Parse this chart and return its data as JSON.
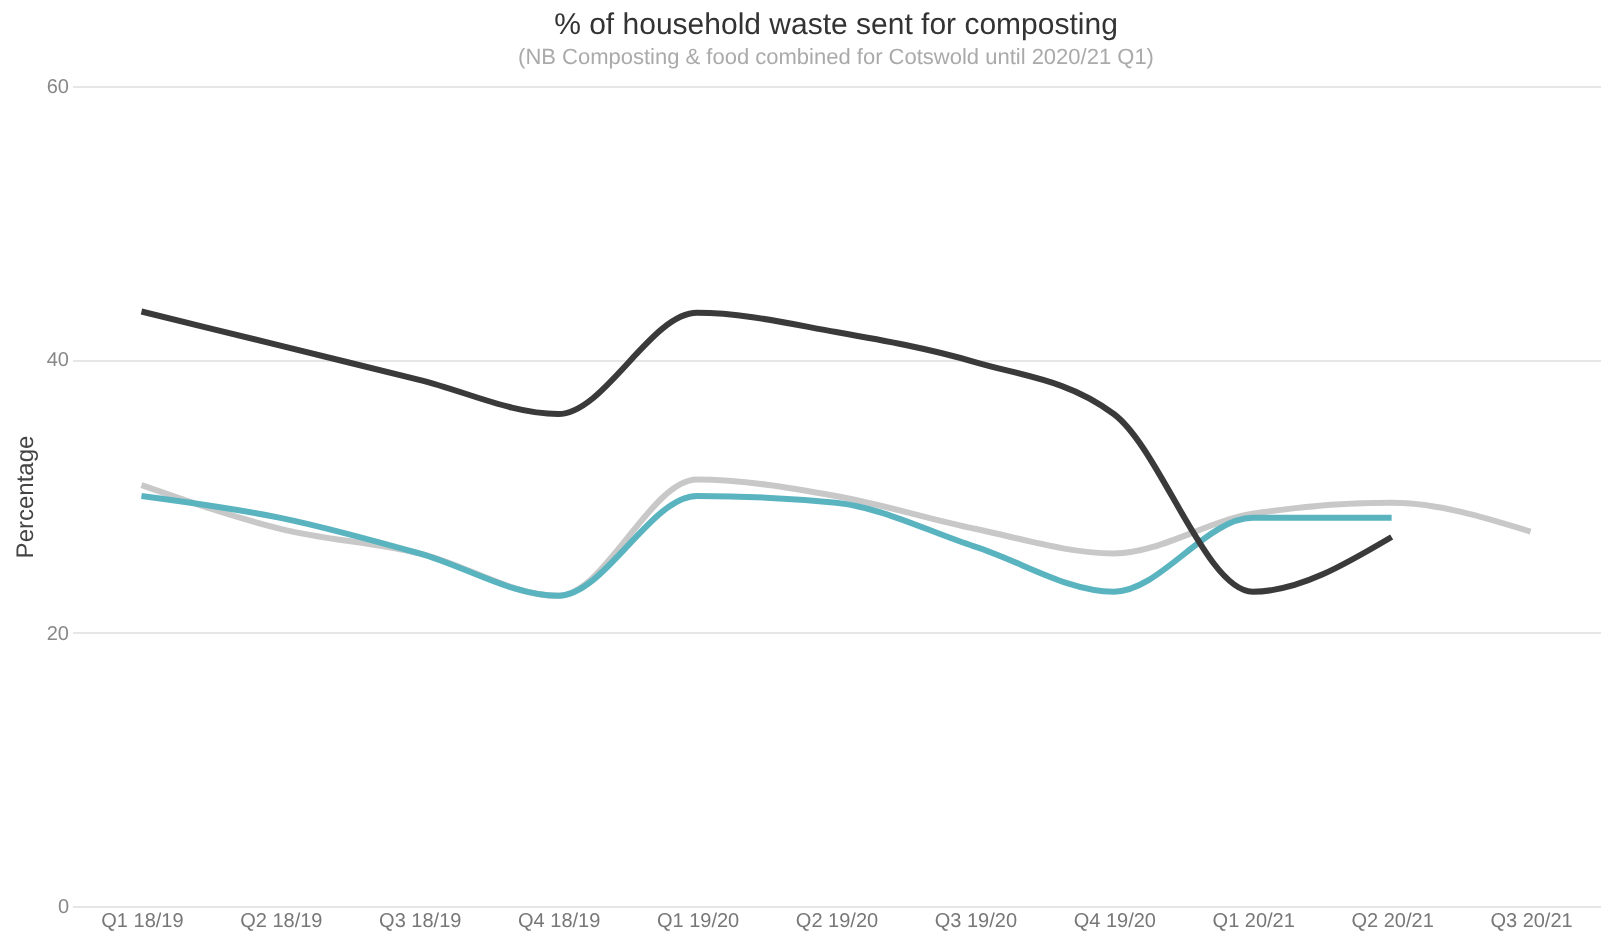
{
  "chart_data": {
    "type": "line",
    "title": "% of household waste sent for composting",
    "subtitle": "(NB Composting & food combined for Cotswold until 2020/21 Q1)",
    "ylabel": "Percentage",
    "categories": [
      "Q1 18/19",
      "Q2 18/19",
      "Q3 18/19",
      "Q4 18/19",
      "Q1 19/20",
      "Q2 19/20",
      "Q3 19/20",
      "Q4 19/20",
      "Q1 20/21",
      "Q2 20/21",
      "Q3 20/21"
    ],
    "series": [
      {
        "color": "#c8c8c8",
        "values": [
          30.8,
          27.6,
          25.8,
          22.7,
          31.2,
          30,
          27.6,
          25.8,
          28.7,
          29.5,
          27.4
        ]
      },
      {
        "color": "#5ab4c0",
        "values": [
          30,
          28.4,
          25.8,
          22.7,
          30,
          29.5,
          26.3,
          23,
          28.4,
          28.4,
          null
        ]
      },
      {
        "color": "#3a3a3a",
        "values": [
          43.5,
          41,
          38.5,
          36,
          43.4,
          42,
          39.8,
          36,
          23,
          27,
          null
        ]
      }
    ],
    "ylim": [
      0,
      60
    ],
    "yticks": [
      0,
      20,
      40,
      60
    ],
    "grid": "y",
    "legend": false,
    "marker": "none",
    "line_style": "solid"
  }
}
